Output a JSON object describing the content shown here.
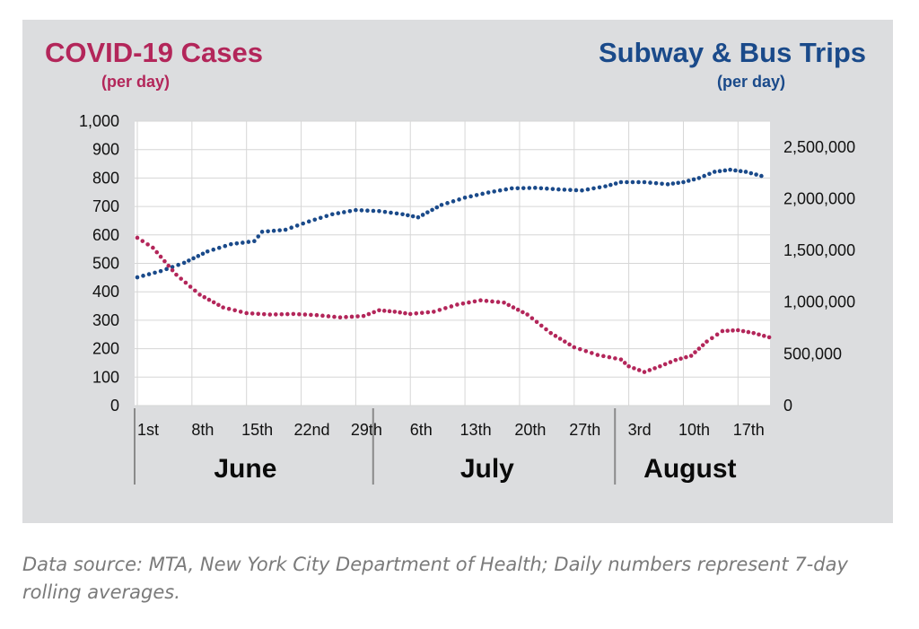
{
  "chart_data": {
    "type": "line",
    "left_title": "COVID-19 Cases",
    "left_subtitle": "(per day)",
    "right_title": "Subway & Bus Trips",
    "right_subtitle": "(per day)",
    "colors": {
      "cases": "#b3265a",
      "trips": "#1a4a8a"
    },
    "left_axis": {
      "ylim": [
        0,
        1000
      ],
      "ticks": [
        "1,000",
        "900",
        "800",
        "700",
        "600",
        "500",
        "400",
        "300",
        "200",
        "100",
        "0"
      ]
    },
    "right_axis": {
      "ylim": [
        0,
        2750000
      ],
      "ticks": [
        "2,500,000",
        "2,000,000",
        "1,500,000",
        "1,000,000",
        "500,000",
        "0"
      ]
    },
    "x_ticks": [
      "1st",
      "8th",
      "15th",
      "22nd",
      "29th",
      "6th",
      "13th",
      "20th",
      "27th",
      "3rd",
      "10th",
      "17th"
    ],
    "months": [
      "June",
      "July",
      "August"
    ],
    "x_range_days": [
      0,
      78
    ],
    "series": [
      {
        "name": "COVID-19 Cases",
        "axis": "left",
        "points": [
          [
            0,
            590
          ],
          [
            2,
            555
          ],
          [
            5,
            460
          ],
          [
            8,
            390
          ],
          [
            11,
            345
          ],
          [
            14,
            325
          ],
          [
            17,
            320
          ],
          [
            20,
            322
          ],
          [
            23,
            318
          ],
          [
            26,
            310
          ],
          [
            29,
            315
          ],
          [
            31,
            335
          ],
          [
            33,
            330
          ],
          [
            35,
            322
          ],
          [
            38,
            330
          ],
          [
            41,
            355
          ],
          [
            44,
            370
          ],
          [
            47,
            362
          ],
          [
            50,
            320
          ],
          [
            53,
            255
          ],
          [
            56,
            205
          ],
          [
            59,
            178
          ],
          [
            62,
            162
          ],
          [
            63,
            138
          ],
          [
            65,
            118
          ],
          [
            67,
            138
          ],
          [
            69,
            160
          ],
          [
            71,
            175
          ],
          [
            73,
            225
          ],
          [
            75,
            262
          ],
          [
            77,
            265
          ],
          [
            79,
            255
          ],
          [
            81,
            240
          ]
        ]
      },
      {
        "name": "Subway & Bus Trips",
        "axis": "right",
        "points": [
          [
            0,
            1240000
          ],
          [
            3,
            1300000
          ],
          [
            6,
            1380000
          ],
          [
            9,
            1490000
          ],
          [
            12,
            1560000
          ],
          [
            15,
            1590000
          ],
          [
            16,
            1680000
          ],
          [
            19,
            1700000
          ],
          [
            22,
            1780000
          ],
          [
            25,
            1850000
          ],
          [
            28,
            1890000
          ],
          [
            31,
            1880000
          ],
          [
            34,
            1850000
          ],
          [
            36,
            1820000
          ],
          [
            39,
            1940000
          ],
          [
            42,
            2010000
          ],
          [
            45,
            2060000
          ],
          [
            48,
            2100000
          ],
          [
            51,
            2105000
          ],
          [
            54,
            2090000
          ],
          [
            57,
            2080000
          ],
          [
            60,
            2120000
          ],
          [
            62,
            2160000
          ],
          [
            65,
            2160000
          ],
          [
            68,
            2140000
          ],
          [
            70,
            2160000
          ],
          [
            72,
            2200000
          ],
          [
            74,
            2260000
          ],
          [
            76,
            2280000
          ],
          [
            78,
            2260000
          ],
          [
            80,
            2220000
          ]
        ]
      }
    ]
  },
  "caption": "Data source: MTA, New York City Department of Health; Daily numbers represent 7-day rolling averages."
}
